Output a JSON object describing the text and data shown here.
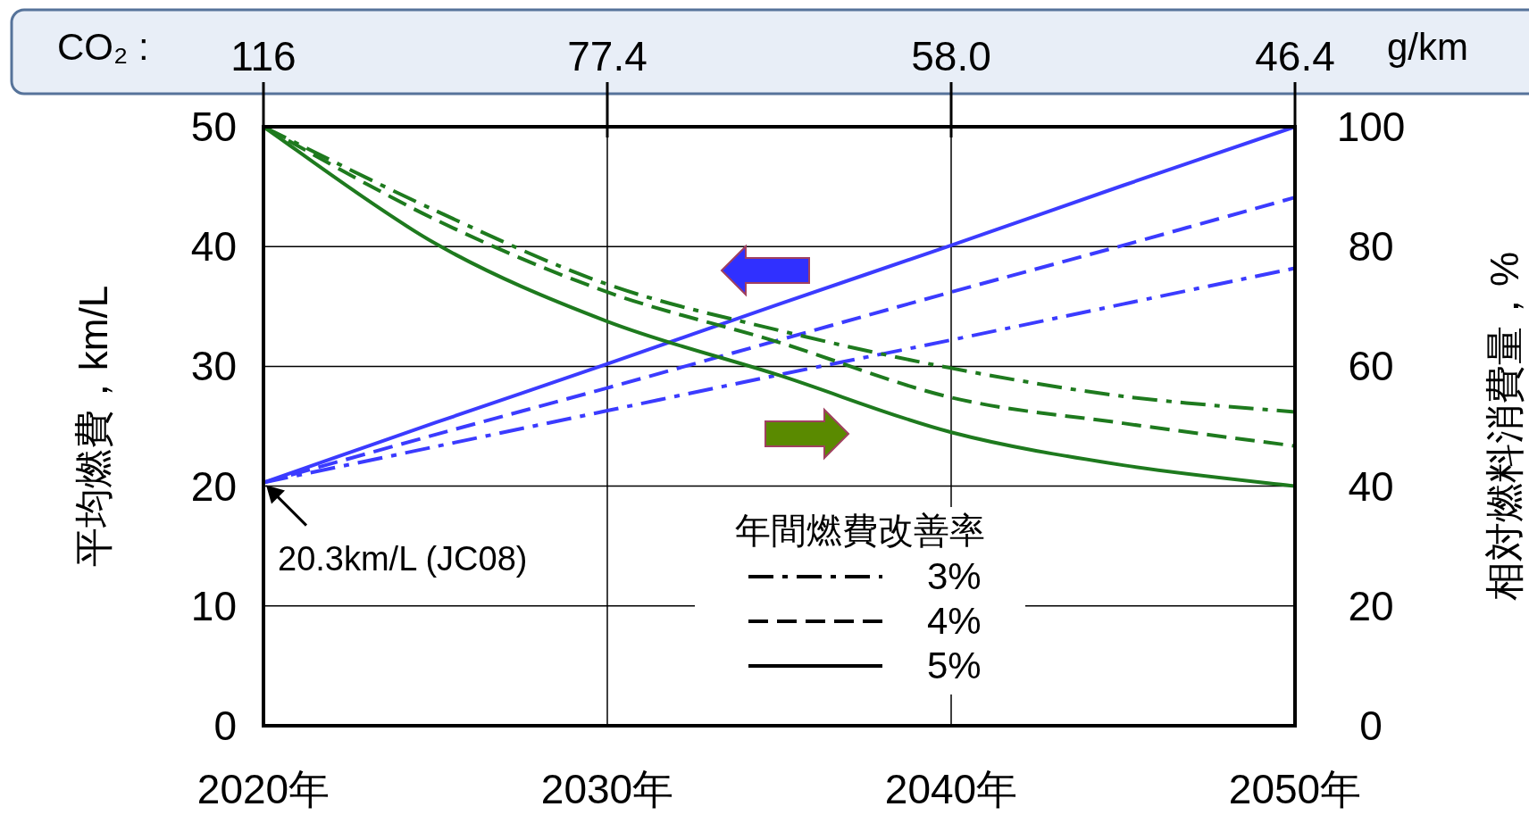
{
  "chart_data": {
    "type": "line",
    "x": [
      2020,
      2025,
      2030,
      2035,
      2040,
      2045,
      2050
    ],
    "xlim": [
      2020,
      2050
    ],
    "xticks": [
      {
        "value": 2020,
        "label": "2020年"
      },
      {
        "value": 2030,
        "label": "2030年"
      },
      {
        "value": 2040,
        "label": "2040年"
      },
      {
        "value": 2050,
        "label": "2050年"
      }
    ],
    "ylim": [
      0,
      50
    ],
    "yticks": [
      0,
      10,
      20,
      30,
      40,
      50
    ],
    "y2lim": [
      0,
      100
    ],
    "y2ticks": [
      0,
      20,
      40,
      60,
      80,
      100
    ],
    "ylabel": "平均燃費，km/L",
    "y2label": "相対燃料消費量，%",
    "legend_title": "年間燃費改善率",
    "grid": true,
    "series": [
      {
        "color": "#3b3bff",
        "line_style": "dashdot",
        "values": [
          20.3,
          23.3,
          26.3,
          29.3,
          32.2,
          35.2,
          38.2
        ]
      },
      {
        "color": "#3b3bff",
        "line_style": "dashed",
        "values": [
          20.3,
          24.3,
          28.2,
          32.2,
          36.2,
          40.1,
          44.1
        ]
      },
      {
        "color": "#3b3bff",
        "line_style": "solid",
        "values": [
          20.3,
          25.3,
          30.2,
          35.2,
          40.1,
          45.1,
          50
        ]
      },
      {
        "color": "#1e7a1e",
        "line_style": "dashdot",
        "axis": "y2",
        "values": [
          100,
          86,
          73.7,
          66,
          59.7,
          55,
          52.4
        ]
      },
      {
        "color": "#1e7a1e",
        "line_style": "dashed",
        "axis": "y2",
        "values": [
          100,
          84.5,
          72.4,
          64,
          54.8,
          50.5,
          46.7
        ]
      },
      {
        "color": "#1e7a1e",
        "line_style": "solid",
        "axis": "y2",
        "values": [
          100,
          80.5,
          67.5,
          58.5,
          49,
          43.5,
          40
        ]
      }
    ],
    "annotations": [
      "CO₂ :",
      "116",
      "77.4",
      "58.0",
      "46.4",
      "g/km",
      "3%",
      "4%",
      "5%",
      {
        "text": "20.3km/L (JC08)",
        "x": 2020,
        "y": 20.3
      }
    ]
  }
}
